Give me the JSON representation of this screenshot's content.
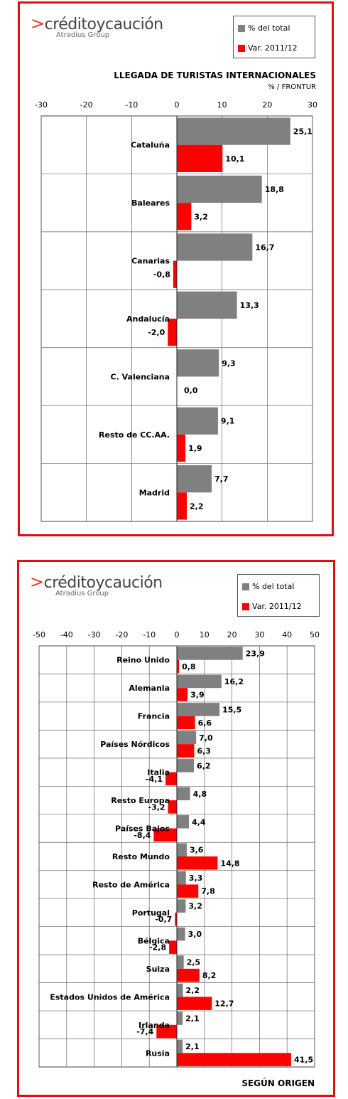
{
  "chart_data": [
    {
      "type": "bar",
      "title": "LLEGADA DE TURISTAS INTERNACIONALES",
      "subtitle": "% / FRONTUR",
      "xlim": [
        -30,
        30
      ],
      "ticks": [
        -30,
        -20,
        -10,
        0,
        10,
        20,
        30
      ],
      "grid": true,
      "legend_position": "top-right",
      "categories": [
        "Cataluña",
        "Baleares",
        "Canarias",
        "Andalucía",
        "C. Valenciana",
        "Resto de CC.AA.",
        "Madrid"
      ],
      "series": [
        {
          "name": "% del total",
          "values": [
            25.1,
            18.8,
            16.7,
            13.3,
            9.3,
            9.1,
            7.7
          ],
          "labels": [
            "25,1",
            "18,8",
            "16,7",
            "13,3",
            "9,3",
            "9,1",
            "7,7"
          ]
        },
        {
          "name": "Var. 2011/12",
          "values": [
            10.1,
            3.2,
            -0.8,
            -2.0,
            0.0,
            1.9,
            2.2
          ],
          "labels": [
            "10,1",
            "3,2",
            "-0,8",
            "-2,0",
            "0,0",
            "1,9",
            "2,2"
          ]
        }
      ]
    },
    {
      "type": "bar",
      "title": "SEGÚN ORIGEN",
      "xlim": [
        -50,
        50
      ],
      "ticks": [
        -50,
        -40,
        -30,
        -20,
        -10,
        0,
        10,
        20,
        30,
        40,
        50
      ],
      "grid": true,
      "legend_position": "top-right",
      "categories": [
        "Reino Unido",
        "Alemania",
        "Francia",
        "Países Nórdicos",
        "Italia",
        "Resto Europa",
        "Países Bajos",
        "Resto Mundo",
        "Resto de América",
        "Portugal",
        "Bélgica",
        "Suiza",
        "Estados Unidos de América",
        "Irlanda",
        "Rusia"
      ],
      "series": [
        {
          "name": "% del total",
          "values": [
            23.9,
            16.2,
            15.5,
            7.0,
            6.2,
            4.8,
            4.4,
            3.6,
            3.3,
            3.2,
            3.0,
            2.5,
            2.2,
            2.1,
            2.1
          ],
          "labels": [
            "23,9",
            "16,2",
            "15,5",
            "7,0",
            "6,2",
            "4,8",
            "4,4",
            "3,6",
            "3,3",
            "3,2",
            "3,0",
            "2,5",
            "2,2",
            "2,1",
            "2,1"
          ]
        },
        {
          "name": "Var. 2011/12",
          "values": [
            0.8,
            3.9,
            6.6,
            6.3,
            -4.1,
            -3.2,
            -8.4,
            14.8,
            7.8,
            -0.7,
            -2.8,
            8.2,
            12.7,
            -7.4,
            41.5
          ],
          "labels": [
            "0,8",
            "3,9",
            "6,6",
            "6,3",
            "-4,1",
            "-3,2",
            "-8,4",
            "14,8",
            "7,8",
            "-0,7",
            "-2,8",
            "8,2",
            "12,7",
            "-7,4",
            "41,5"
          ]
        }
      ]
    }
  ],
  "logo": {
    "main": "créditoycaución",
    "sub": "Atradius Group",
    "mark_icon": "arrow-mark-icon"
  },
  "colors": {
    "share": "#808080",
    "var": "#ff0000",
    "frame": "#e01010"
  }
}
